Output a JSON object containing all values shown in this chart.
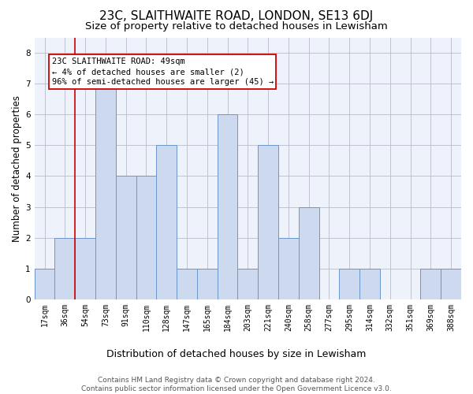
{
  "title": "23C, SLAITHWAITE ROAD, LONDON, SE13 6DJ",
  "subtitle": "Size of property relative to detached houses in Lewisham",
  "xlabel": "Distribution of detached houses by size in Lewisham",
  "ylabel": "Number of detached properties",
  "categories": [
    "17sqm",
    "36sqm",
    "54sqm",
    "73sqm",
    "91sqm",
    "110sqm",
    "128sqm",
    "147sqm",
    "165sqm",
    "184sqm",
    "203sqm",
    "221sqm",
    "240sqm",
    "258sqm",
    "277sqm",
    "295sqm",
    "314sqm",
    "332sqm",
    "351sqm",
    "369sqm",
    "388sqm"
  ],
  "values": [
    1,
    2,
    2,
    7,
    4,
    4,
    5,
    1,
    1,
    6,
    1,
    5,
    2,
    3,
    0,
    1,
    1,
    0,
    0,
    1,
    1
  ],
  "bar_color": "#ccd9ee",
  "bar_edge_color": "#6b96cc",
  "vline_color": "#cc0000",
  "vline_x": 1.5,
  "annotation_text": "23C SLAITHWAITE ROAD: 49sqm\n← 4% of detached houses are smaller (2)\n96% of semi-detached houses are larger (45) →",
  "ylim": [
    0,
    8.5
  ],
  "yticks": [
    0,
    1,
    2,
    3,
    4,
    5,
    6,
    7,
    8
  ],
  "grid_color": "#bbbbcc",
  "background_color": "#eef2fa",
  "footer_text": "Contains HM Land Registry data © Crown copyright and database right 2024.\nContains public sector information licensed under the Open Government Licence v3.0.",
  "title_fontsize": 11,
  "subtitle_fontsize": 9.5,
  "ylabel_fontsize": 8.5,
  "xlabel_fontsize": 9,
  "tick_fontsize": 7,
  "annotation_fontsize": 7.5,
  "footer_fontsize": 6.5
}
